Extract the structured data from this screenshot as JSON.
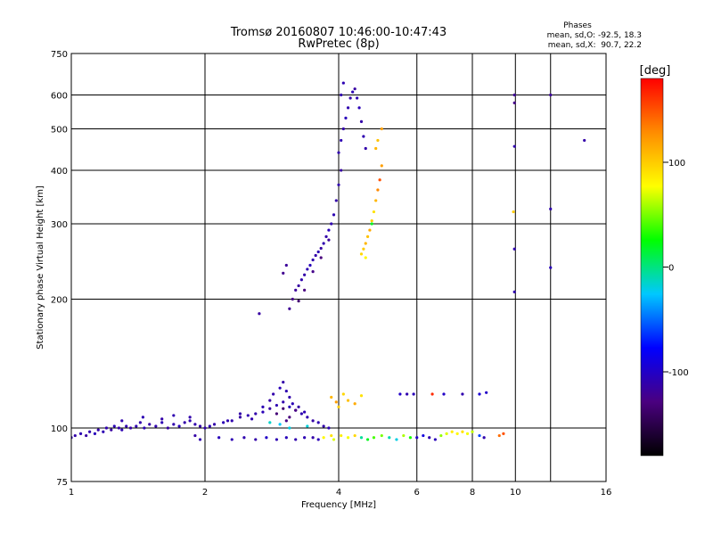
{
  "chart_data": {
    "type": "scatter",
    "title": "Tromsø 20160807 10:46:00-10:47:43",
    "subtitle": "RwPretec (8p)",
    "xlabel": "Frequency [MHz]",
    "ylabel": "Stationary phase Virtual Height [km]",
    "xscale": "log",
    "yscale": "log",
    "xlim": [
      1,
      16
    ],
    "ylim": [
      75,
      750
    ],
    "xticks": [
      1,
      2,
      4,
      6,
      8,
      10,
      16
    ],
    "xtick_labels": [
      "1",
      "2",
      "4",
      "6",
      "8",
      "10",
      "16"
    ],
    "xgrid": [
      2,
      4,
      6,
      8,
      10,
      12
    ],
    "yticks": [
      75,
      100,
      200,
      300,
      400,
      500,
      600,
      750
    ],
    "ytick_labels": [
      "75",
      "100",
      "200",
      "300",
      "400",
      "500",
      "600",
      "750"
    ],
    "grid": true,
    "phase_stats": {
      "heading": "Phases",
      "line_o": "mean, sd,O: -92.5, 18.3",
      "line_x": "mean, sd,X:  90.7, 22.2"
    },
    "colorbar": {
      "label": "[deg]",
      "range": [
        -180,
        180
      ],
      "ticks": [
        100,
        0,
        -100
      ],
      "tick_labels": [
        "100",
        "0",
        "-100"
      ],
      "colors": [
        "#000000",
        "#4a0080",
        "#0000ff",
        "#00c8ff",
        "#00ff00",
        "#ffff00",
        "#ff8c00",
        "#ff0000"
      ]
    },
    "series": [
      {
        "points": [
          [
            1.0,
            95,
            -110
          ],
          [
            1.02,
            96,
            -112
          ],
          [
            1.05,
            97,
            -108
          ],
          [
            1.08,
            96,
            -115
          ],
          [
            1.1,
            98,
            -110
          ],
          [
            1.13,
            97,
            -105
          ],
          [
            1.15,
            99,
            -112
          ],
          [
            1.18,
            98,
            -108
          ],
          [
            1.2,
            100,
            -110
          ],
          [
            1.23,
            99,
            -115
          ],
          [
            1.25,
            101,
            -106
          ],
          [
            1.28,
            100,
            -112
          ],
          [
            1.3,
            99,
            -108
          ],
          [
            1.33,
            101,
            -110
          ],
          [
            1.36,
            100,
            -114
          ],
          [
            1.4,
            101,
            -109
          ],
          [
            1.43,
            103,
            -111
          ],
          [
            1.46,
            100,
            -107
          ],
          [
            1.5,
            102,
            -113
          ],
          [
            1.55,
            101,
            -110
          ],
          [
            1.6,
            103,
            -108
          ],
          [
            1.65,
            100,
            -115
          ],
          [
            1.7,
            102,
            -110
          ],
          [
            1.75,
            101,
            -106
          ],
          [
            1.8,
            103,
            -112
          ],
          [
            1.85,
            104,
            -109
          ],
          [
            1.9,
            102,
            -110
          ],
          [
            1.95,
            101,
            -113
          ],
          [
            2.0,
            100,
            -111
          ],
          [
            2.05,
            101,
            -108
          ],
          [
            2.1,
            102,
            -112
          ],
          [
            2.2,
            103,
            -107
          ],
          [
            2.3,
            104,
            -110
          ],
          [
            2.4,
            106,
            -114
          ],
          [
            2.5,
            107,
            -109
          ],
          [
            2.6,
            108,
            -111
          ],
          [
            2.7,
            109,
            -106
          ],
          [
            2.8,
            111,
            -115
          ],
          [
            2.9,
            113,
            -108
          ],
          [
            3.0,
            115,
            -110
          ],
          [
            3.1,
            112,
            -105
          ],
          [
            3.2,
            110,
            -112
          ],
          [
            3.3,
            108,
            -109
          ],
          [
            3.4,
            106,
            -110
          ],
          [
            3.5,
            104,
            -113
          ],
          [
            3.6,
            103,
            -108
          ],
          [
            3.7,
            101,
            -111
          ],
          [
            3.8,
            100,
            -107
          ]
        ]
      },
      {
        "points": [
          [
            1.3,
            104,
            -110
          ],
          [
            1.45,
            106,
            -108
          ],
          [
            1.6,
            105,
            -112
          ],
          [
            1.7,
            107,
            -109
          ],
          [
            1.85,
            106,
            -111
          ],
          [
            1.9,
            96,
            -113
          ],
          [
            1.95,
            94,
            -110
          ],
          [
            2.25,
            104,
            -109
          ],
          [
            2.4,
            108,
            -112
          ],
          [
            2.55,
            105,
            -110
          ],
          [
            2.7,
            112,
            -108
          ],
          [
            2.8,
            116,
            -114
          ],
          [
            2.85,
            120,
            -111
          ],
          [
            2.95,
            124,
            -106
          ],
          [
            3.0,
            128,
            -112
          ],
          [
            3.05,
            122,
            -109
          ],
          [
            3.1,
            118,
            -111
          ],
          [
            3.15,
            114,
            -107
          ],
          [
            3.25,
            112,
            -113
          ],
          [
            3.35,
            109,
            -108
          ],
          [
            2.9,
            108,
            -132
          ],
          [
            3.0,
            111,
            -135
          ],
          [
            3.1,
            106,
            -130
          ],
          [
            3.2,
            110,
            -128
          ],
          [
            3.05,
            104,
            -125
          ]
        ]
      },
      {
        "points": [
          [
            2.15,
            95,
            -105
          ],
          [
            2.3,
            94,
            -108
          ],
          [
            2.45,
            95,
            -110
          ],
          [
            2.6,
            94,
            -112
          ],
          [
            2.75,
            95,
            -100
          ],
          [
            2.9,
            94,
            -108
          ],
          [
            3.05,
            95,
            -105
          ],
          [
            3.2,
            94,
            -110
          ],
          [
            3.35,
            95,
            -108
          ],
          [
            3.5,
            95,
            -112
          ],
          [
            3.6,
            94,
            -106
          ],
          [
            2.8,
            103,
            -15
          ],
          [
            2.95,
            102,
            -25
          ],
          [
            3.1,
            100,
            -20
          ],
          [
            3.4,
            101,
            -18
          ]
        ]
      },
      {
        "points": [
          [
            3.7,
            95,
            80
          ],
          [
            3.85,
            96,
            90
          ],
          [
            3.9,
            94,
            70
          ],
          [
            4.05,
            96,
            85
          ],
          [
            4.2,
            95,
            75
          ],
          [
            4.35,
            96,
            95
          ],
          [
            4.5,
            95,
            -5
          ],
          [
            4.65,
            94,
            20
          ],
          [
            4.8,
            95,
            40
          ],
          [
            5.0,
            96,
            50
          ],
          [
            5.2,
            95,
            -10
          ],
          [
            5.4,
            94,
            -20
          ],
          [
            5.6,
            96,
            60
          ],
          [
            5.8,
            95,
            30
          ],
          [
            6.0,
            95,
            -100
          ],
          [
            6.2,
            96,
            -90
          ],
          [
            6.4,
            95,
            -110
          ],
          [
            6.6,
            94,
            -105
          ],
          [
            6.8,
            96,
            55
          ],
          [
            7.0,
            97,
            70
          ],
          [
            7.2,
            98,
            85
          ],
          [
            7.4,
            97,
            80
          ],
          [
            7.6,
            98,
            90
          ],
          [
            7.8,
            97,
            75
          ],
          [
            8.0,
            98,
            65
          ],
          [
            8.3,
            96,
            -60
          ],
          [
            8.5,
            95,
            -110
          ],
          [
            9.2,
            96,
            140
          ],
          [
            9.4,
            97,
            150
          ]
        ]
      },
      {
        "points": [
          [
            3.85,
            118,
            110
          ],
          [
            3.95,
            115,
            120
          ],
          [
            4.0,
            112,
            100
          ],
          [
            4.1,
            120,
            95
          ],
          [
            4.2,
            116,
            105
          ],
          [
            4.35,
            114,
            115
          ],
          [
            4.5,
            119,
            90
          ],
          [
            5.5,
            120,
            -100
          ],
          [
            5.7,
            120,
            -110
          ],
          [
            5.9,
            120,
            -105
          ],
          [
            6.5,
            120,
            165
          ],
          [
            6.9,
            120,
            -100
          ],
          [
            7.6,
            120,
            -110
          ],
          [
            8.3,
            120,
            -95
          ],
          [
            8.6,
            121,
            -100
          ]
        ]
      },
      {
        "points": [
          [
            2.65,
            185,
            -115
          ],
          [
            3.1,
            190,
            -120
          ],
          [
            3.15,
            200,
            -125
          ],
          [
            3.2,
            210,
            -118
          ],
          [
            3.25,
            215,
            -115
          ],
          [
            3.3,
            222,
            -110
          ],
          [
            3.35,
            228,
            -112
          ],
          [
            3.4,
            235,
            -108
          ],
          [
            3.45,
            240,
            -105
          ],
          [
            3.5,
            247,
            -110
          ],
          [
            3.55,
            253,
            -112
          ],
          [
            3.6,
            258,
            -108
          ],
          [
            3.65,
            263,
            -115
          ],
          [
            3.7,
            270,
            -110
          ],
          [
            3.75,
            280,
            -112
          ],
          [
            3.8,
            290,
            -105
          ],
          [
            3.85,
            300,
            -110
          ],
          [
            3.9,
            315,
            -108
          ],
          [
            3.95,
            340,
            -112
          ],
          [
            4.0,
            370,
            -110
          ],
          [
            4.05,
            400,
            -115
          ],
          [
            3.25,
            198,
            -135
          ],
          [
            3.35,
            210,
            -128
          ],
          [
            3.5,
            232,
            -125
          ],
          [
            3.65,
            250,
            -130
          ],
          [
            3.8,
            275,
            -118
          ],
          [
            3.0,
            230,
            -122
          ],
          [
            3.05,
            240,
            -118
          ]
        ]
      },
      {
        "points": [
          [
            4.0,
            440,
            -110
          ],
          [
            4.05,
            470,
            -108
          ],
          [
            4.1,
            500,
            -112
          ],
          [
            4.15,
            530,
            -105
          ],
          [
            4.2,
            560,
            -110
          ],
          [
            4.25,
            590,
            -112
          ],
          [
            4.3,
            610,
            -108
          ],
          [
            4.35,
            620,
            -115
          ],
          [
            4.4,
            590,
            -110
          ],
          [
            4.45,
            560,
            -106
          ],
          [
            4.5,
            520,
            -112
          ],
          [
            4.55,
            480,
            -109
          ],
          [
            4.6,
            450,
            -111
          ],
          [
            4.05,
            600,
            -110
          ],
          [
            4.1,
            640,
            -108
          ]
        ]
      },
      {
        "points": [
          [
            4.5,
            255,
            95
          ],
          [
            4.55,
            262,
            100
          ],
          [
            4.6,
            270,
            110
          ],
          [
            4.65,
            280,
            105
          ],
          [
            4.7,
            290,
            115
          ],
          [
            4.75,
            305,
            100
          ],
          [
            4.8,
            320,
            90
          ],
          [
            4.85,
            340,
            110
          ],
          [
            4.9,
            360,
            130
          ],
          [
            4.95,
            380,
            150
          ],
          [
            5.0,
            410,
            120
          ],
          [
            4.85,
            450,
            110
          ],
          [
            4.9,
            470,
            105
          ],
          [
            5.0,
            500,
            120
          ],
          [
            4.75,
            300,
            20
          ],
          [
            4.6,
            250,
            80
          ]
        ]
      },
      {
        "points": [
          [
            9.95,
            600,
            -120
          ],
          [
            9.95,
            575,
            -125
          ],
          [
            9.95,
            455,
            -110
          ],
          [
            9.9,
            320,
            100
          ],
          [
            9.95,
            262,
            -110
          ],
          [
            9.95,
            208,
            -110
          ],
          [
            12.0,
            600,
            -118
          ],
          [
            12.0,
            325,
            -110
          ],
          [
            12.0,
            237,
            -105
          ],
          [
            14.3,
            470,
            -112
          ]
        ]
      }
    ]
  }
}
